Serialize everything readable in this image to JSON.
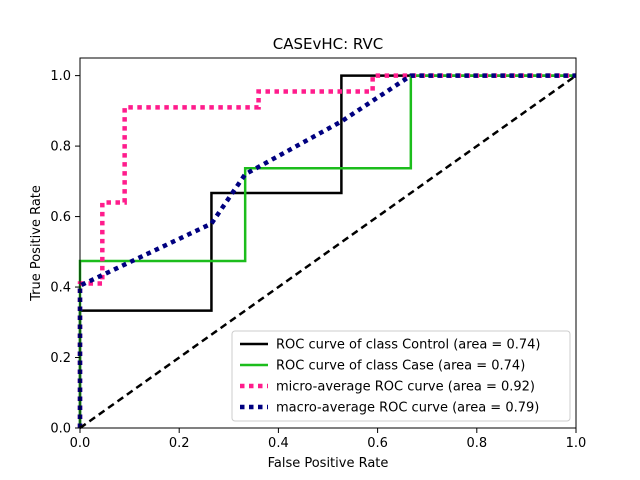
{
  "chart_data": {
    "type": "line",
    "title": "CASEvHC: RVC",
    "xlabel": "False Positive Rate",
    "ylabel": "True Positive Rate",
    "xlim": [
      0.0,
      1.0
    ],
    "ylim": [
      0.0,
      1.05
    ],
    "x_ticks": [
      "0.0",
      "0.2",
      "0.4",
      "0.6",
      "0.8",
      "1.0"
    ],
    "y_ticks": [
      "0.0",
      "0.2",
      "0.4",
      "0.6",
      "0.8",
      "1.0"
    ],
    "grid": false,
    "legend_position": "lower-right",
    "series": [
      {
        "name": "ROC curve of class  Control (area = 0.74)",
        "color": "#000000",
        "style": "solid",
        "x": [
          0.0,
          0.0,
          0.265,
          0.265,
          0.527,
          0.527,
          1.0
        ],
        "y": [
          0.0,
          0.333,
          0.333,
          0.667,
          0.667,
          1.0,
          1.0
        ]
      },
      {
        "name": "ROC curve of class Case (area = 0.74)",
        "color": "#1cbd1c",
        "style": "solid",
        "x": [
          0.0,
          0.0,
          0.333,
          0.333,
          0.667,
          0.667,
          1.0
        ],
        "y": [
          0.0,
          0.474,
          0.474,
          0.737,
          0.737,
          1.0,
          1.0
        ]
      },
      {
        "name": "micro-average ROC curve (area = 0.92)",
        "color": "#ff1c8c",
        "style": "dotted",
        "x": [
          0.0,
          0.0,
          0.045,
          0.045,
          0.09,
          0.09,
          0.36,
          0.36,
          0.59,
          0.59,
          1.0
        ],
        "y": [
          0.0,
          0.41,
          0.41,
          0.64,
          0.64,
          0.91,
          0.91,
          0.955,
          0.955,
          1.0,
          1.0
        ]
      },
      {
        "name": "macro-average ROC curve (area = 0.79)",
        "color": "#000080",
        "style": "dotted",
        "x": [
          0.0,
          0.0,
          0.265,
          0.333,
          0.527,
          0.667,
          1.0
        ],
        "y": [
          0.0,
          0.404,
          0.58,
          0.72,
          0.87,
          1.0,
          1.0
        ]
      },
      {
        "name": "",
        "color": "#000000",
        "style": "dashed",
        "x": [
          0.0,
          1.0
        ],
        "y": [
          0.0,
          1.0
        ]
      }
    ]
  }
}
